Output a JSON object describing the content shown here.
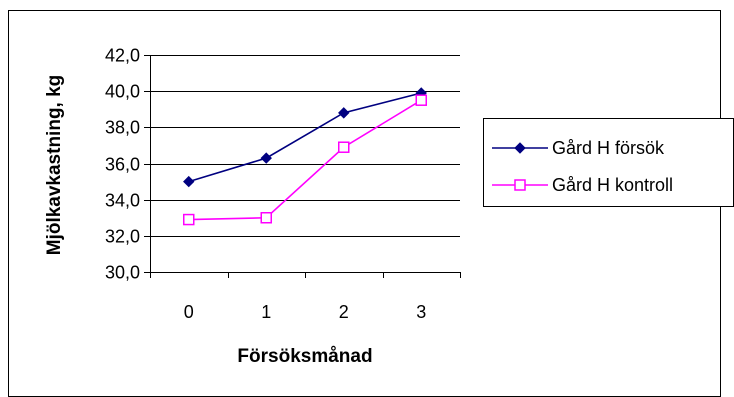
{
  "chart_data": {
    "type": "line",
    "title": "",
    "xlabel": "Försöksmånad",
    "ylabel": "Mjölkavkastning, kg",
    "categories": [
      "0",
      "1",
      "2",
      "3"
    ],
    "ylim": [
      30.0,
      42.0
    ],
    "yticks": [
      "30,0",
      "32,0",
      "34,0",
      "36,0",
      "38,0",
      "40,0",
      "42,0"
    ],
    "ytick_values": [
      30,
      32,
      34,
      36,
      38,
      40,
      42
    ],
    "grid": "horizontal",
    "legend_position": "right",
    "series": [
      {
        "name": "Gård H försök",
        "values": [
          35.0,
          36.3,
          38.8,
          39.9
        ],
        "color": "#000080",
        "marker": "filled-diamond"
      },
      {
        "name": "Gård H kontroll",
        "values": [
          32.9,
          33.0,
          36.9,
          39.5
        ],
        "color": "#ff00ff",
        "marker": "open-square"
      }
    ]
  }
}
